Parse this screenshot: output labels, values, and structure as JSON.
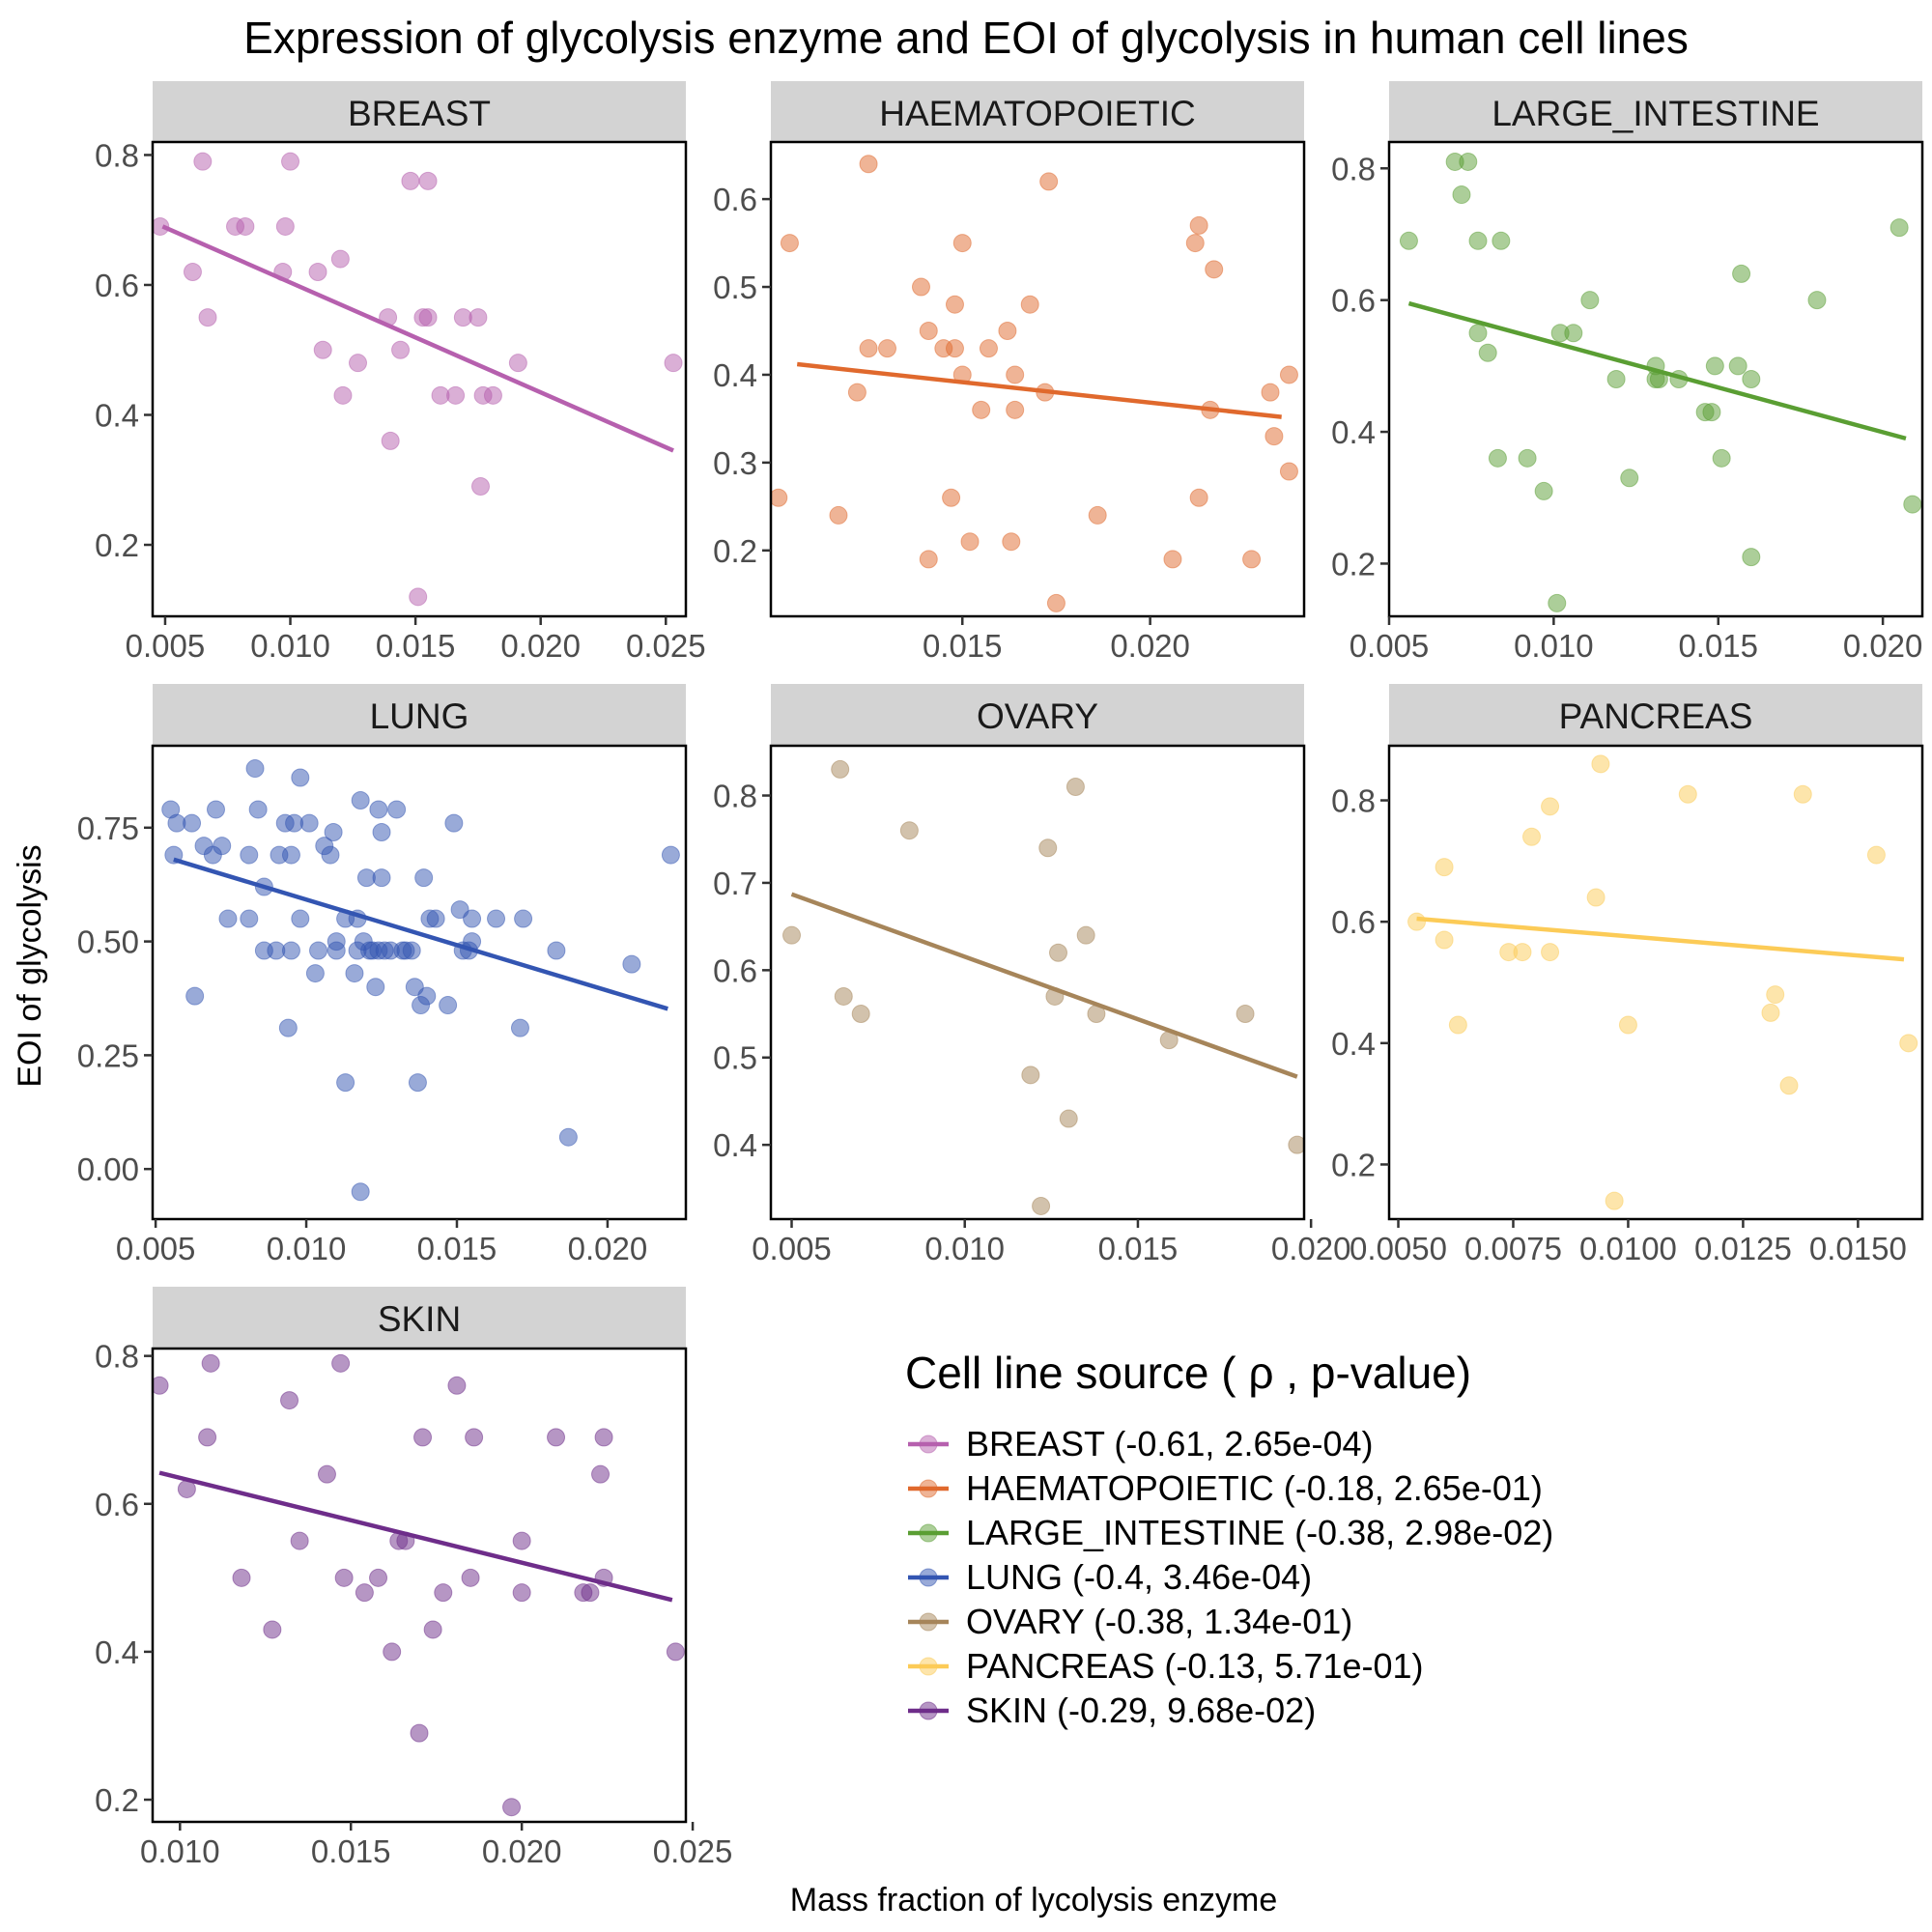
{
  "title": "Expression of glycolysis enzyme and EOI of glycolysis in human cell lines",
  "xlabel": "Mass fraction of lycolysis enzyme",
  "ylabel": "EOI of glycolysis",
  "legend": {
    "title": "Cell line source ( ρ , p-value)",
    "placement": "bottom-right",
    "entries": [
      {
        "label": "BREAST (-0.61, 2.65e-04)",
        "color": "#B660AE"
      },
      {
        "label": "HAEMATOPOIETIC (-0.18, 2.65e-01)",
        "color": "#E0692D"
      },
      {
        "label": "LARGE_INTESTINE (-0.38, 2.98e-02)",
        "color": "#5A9E33"
      },
      {
        "label": "LUNG (-0.4, 3.46e-04)",
        "color": "#3355B2"
      },
      {
        "label": "OVARY (-0.38, 1.34e-01)",
        "color": "#A6855A"
      },
      {
        "label": "PANCREAS (-0.13, 5.71e-01)",
        "color": "#FCCB57"
      },
      {
        "label": "SKIN (-0.29, 9.68e-02)",
        "color": "#6E2D8A"
      }
    ]
  },
  "chart_data": [
    {
      "type": "scatter",
      "title": "BREAST",
      "color": "#B660AE",
      "xlim": [
        0.0045,
        0.0258
      ],
      "ylim": [
        0.09,
        0.82
      ],
      "xticks": [
        "0.005",
        "0.010",
        "0.015",
        "0.020",
        "0.025"
      ],
      "yticks": [
        "0.2",
        "0.4",
        "0.6",
        "0.8"
      ],
      "points": [
        [
          0.0048,
          0.69
        ],
        [
          0.0061,
          0.62
        ],
        [
          0.0065,
          0.79
        ],
        [
          0.0067,
          0.55
        ],
        [
          0.0078,
          0.69
        ],
        [
          0.0082,
          0.69
        ],
        [
          0.0097,
          0.62
        ],
        [
          0.0098,
          0.69
        ],
        [
          0.01,
          0.79
        ],
        [
          0.0111,
          0.62
        ],
        [
          0.0113,
          0.5
        ],
        [
          0.012,
          0.64
        ],
        [
          0.0121,
          0.43
        ],
        [
          0.0127,
          0.48
        ],
        [
          0.0139,
          0.55
        ],
        [
          0.014,
          0.36
        ],
        [
          0.0144,
          0.5
        ],
        [
          0.0148,
          0.76
        ],
        [
          0.0151,
          0.12
        ],
        [
          0.0153,
          0.55
        ],
        [
          0.0155,
          0.55
        ],
        [
          0.0155,
          0.76
        ],
        [
          0.016,
          0.43
        ],
        [
          0.0166,
          0.43
        ],
        [
          0.0169,
          0.55
        ],
        [
          0.0175,
          0.55
        ],
        [
          0.0176,
          0.29
        ],
        [
          0.0177,
          0.43
        ],
        [
          0.0181,
          0.43
        ],
        [
          0.0191,
          0.48
        ],
        [
          0.0253,
          0.48
        ]
      ],
      "fit": [
        [
          0.0049,
          0.69
        ],
        [
          0.0253,
          0.345
        ]
      ]
    },
    {
      "type": "scatter",
      "title": "HAEMATOPOIETIC",
      "color": "#E0692D",
      "xlim": [
        0.0099,
        0.0241
      ],
      "ylim": [
        0.125,
        0.665
      ],
      "xticks": [
        "0.015",
        "0.020"
      ],
      "yticks": [
        "0.2",
        "0.3",
        "0.4",
        "0.5",
        "0.6"
      ],
      "points": [
        [
          0.0101,
          0.26
        ],
        [
          0.0104,
          0.55
        ],
        [
          0.0117,
          0.24
        ],
        [
          0.0122,
          0.38
        ],
        [
          0.0125,
          0.43
        ],
        [
          0.0125,
          0.64
        ],
        [
          0.013,
          0.43
        ],
        [
          0.0139,
          0.5
        ],
        [
          0.0141,
          0.19
        ],
        [
          0.0141,
          0.45
        ],
        [
          0.0145,
          0.43
        ],
        [
          0.0147,
          0.26
        ],
        [
          0.0148,
          0.43
        ],
        [
          0.0148,
          0.48
        ],
        [
          0.015,
          0.55
        ],
        [
          0.015,
          0.4
        ],
        [
          0.0152,
          0.21
        ],
        [
          0.0155,
          0.36
        ],
        [
          0.0157,
          0.43
        ],
        [
          0.0162,
          0.45
        ],
        [
          0.0163,
          0.21
        ],
        [
          0.0164,
          0.4
        ],
        [
          0.0164,
          0.36
        ],
        [
          0.0168,
          0.48
        ],
        [
          0.0172,
          0.38
        ],
        [
          0.0173,
          0.62
        ],
        [
          0.0175,
          0.14
        ],
        [
          0.0186,
          0.24
        ],
        [
          0.0206,
          0.19
        ],
        [
          0.0212,
          0.55
        ],
        [
          0.0213,
          0.57
        ],
        [
          0.0213,
          0.26
        ],
        [
          0.0216,
          0.36
        ],
        [
          0.0217,
          0.52
        ],
        [
          0.0227,
          0.19
        ],
        [
          0.0232,
          0.38
        ],
        [
          0.0233,
          0.33
        ],
        [
          0.0237,
          0.29
        ],
        [
          0.0237,
          0.4
        ]
      ],
      "fit": [
        [
          0.0106,
          0.412
        ],
        [
          0.0235,
          0.352
        ]
      ]
    },
    {
      "type": "scatter",
      "title": "LARGE_INTESTINE",
      "color": "#5A9E33",
      "xlim": [
        0.005,
        0.0212
      ],
      "ylim": [
        0.12,
        0.84
      ],
      "xticks": [
        "0.005",
        "0.010",
        "0.015",
        "0.020"
      ],
      "yticks": [
        "0.2",
        "0.4",
        "0.6",
        "0.8"
      ],
      "points": [
        [
          0.0056,
          0.69
        ],
        [
          0.007,
          0.81
        ],
        [
          0.0072,
          0.76
        ],
        [
          0.0074,
          0.81
        ],
        [
          0.0077,
          0.69
        ],
        [
          0.0077,
          0.55
        ],
        [
          0.008,
          0.52
        ],
        [
          0.0083,
          0.36
        ],
        [
          0.0084,
          0.69
        ],
        [
          0.0092,
          0.36
        ],
        [
          0.0097,
          0.31
        ],
        [
          0.0101,
          0.14
        ],
        [
          0.0102,
          0.55
        ],
        [
          0.0106,
          0.55
        ],
        [
          0.0111,
          0.6
        ],
        [
          0.0119,
          0.48
        ],
        [
          0.0123,
          0.33
        ],
        [
          0.0131,
          0.48
        ],
        [
          0.0131,
          0.5
        ],
        [
          0.0132,
          0.48
        ],
        [
          0.0138,
          0.48
        ],
        [
          0.0146,
          0.43
        ],
        [
          0.0148,
          0.43
        ],
        [
          0.0149,
          0.5
        ],
        [
          0.0151,
          0.36
        ],
        [
          0.0156,
          0.5
        ],
        [
          0.0157,
          0.64
        ],
        [
          0.016,
          0.48
        ],
        [
          0.016,
          0.21
        ],
        [
          0.018,
          0.6
        ],
        [
          0.0205,
          0.71
        ],
        [
          0.0209,
          0.29
        ]
      ],
      "fit": [
        [
          0.0056,
          0.595
        ],
        [
          0.0207,
          0.39
        ]
      ]
    },
    {
      "type": "scatter",
      "title": "LUNG",
      "color": "#3355B2",
      "xlim": [
        0.0049,
        0.0226
      ],
      "ylim": [
        -0.11,
        0.93
      ],
      "xticks": [
        "0.005",
        "0.010",
        "0.015",
        "0.020"
      ],
      "yticks": [
        "0.00",
        "0.25",
        "0.50",
        "0.75"
      ],
      "points": [
        [
          0.0055,
          0.79
        ],
        [
          0.0056,
          0.69
        ],
        [
          0.0057,
          0.76
        ],
        [
          0.0062,
          0.76
        ],
        [
          0.0063,
          0.38
        ],
        [
          0.0066,
          0.71
        ],
        [
          0.0069,
          0.69
        ],
        [
          0.007,
          0.79
        ],
        [
          0.0072,
          0.71
        ],
        [
          0.0074,
          0.55
        ],
        [
          0.0081,
          0.55
        ],
        [
          0.0081,
          0.69
        ],
        [
          0.0083,
          0.88
        ],
        [
          0.0084,
          0.79
        ],
        [
          0.0086,
          0.62
        ],
        [
          0.0086,
          0.48
        ],
        [
          0.009,
          0.48
        ],
        [
          0.0091,
          0.69
        ],
        [
          0.0093,
          0.76
        ],
        [
          0.0094,
          0.31
        ],
        [
          0.0095,
          0.69
        ],
        [
          0.0095,
          0.48
        ],
        [
          0.0096,
          0.76
        ],
        [
          0.0098,
          0.55
        ],
        [
          0.0098,
          0.86
        ],
        [
          0.0101,
          0.76
        ],
        [
          0.0103,
          0.43
        ],
        [
          0.0104,
          0.48
        ],
        [
          0.0106,
          0.71
        ],
        [
          0.0108,
          0.69
        ],
        [
          0.0109,
          0.74
        ],
        [
          0.011,
          0.48
        ],
        [
          0.011,
          0.5
        ],
        [
          0.0113,
          0.19
        ],
        [
          0.0113,
          0.55
        ],
        [
          0.0116,
          0.43
        ],
        [
          0.0117,
          0.48
        ],
        [
          0.0117,
          0.55
        ],
        [
          0.0118,
          0.81
        ],
        [
          0.0118,
          -0.05
        ],
        [
          0.0119,
          0.5
        ],
        [
          0.012,
          0.64
        ],
        [
          0.0121,
          0.48
        ],
        [
          0.0122,
          0.48
        ],
        [
          0.0123,
          0.4
        ],
        [
          0.0124,
          0.79
        ],
        [
          0.0124,
          0.48
        ],
        [
          0.0125,
          0.64
        ],
        [
          0.0125,
          0.74
        ],
        [
          0.0126,
          0.48
        ],
        [
          0.0128,
          0.48
        ],
        [
          0.013,
          0.79
        ],
        [
          0.0132,
          0.48
        ],
        [
          0.0133,
          0.48
        ],
        [
          0.0135,
          0.48
        ],
        [
          0.0136,
          0.4
        ],
        [
          0.0137,
          0.19
        ],
        [
          0.0138,
          0.36
        ],
        [
          0.0139,
          0.64
        ],
        [
          0.014,
          0.38
        ],
        [
          0.0141,
          0.55
        ],
        [
          0.0143,
          0.55
        ],
        [
          0.0147,
          0.36
        ],
        [
          0.0149,
          0.76
        ],
        [
          0.0151,
          0.57
        ],
        [
          0.0152,
          0.48
        ],
        [
          0.0154,
          0.48
        ],
        [
          0.0155,
          0.55
        ],
        [
          0.0155,
          0.5
        ],
        [
          0.0163,
          0.55
        ],
        [
          0.0171,
          0.31
        ],
        [
          0.0172,
          0.55
        ],
        [
          0.0183,
          0.48
        ],
        [
          0.0187,
          0.07
        ],
        [
          0.0208,
          0.45
        ],
        [
          0.0221,
          0.69
        ]
      ],
      "fit": [
        [
          0.0056,
          0.68
        ],
        [
          0.022,
          0.352
        ]
      ]
    },
    {
      "type": "scatter",
      "title": "OVARY",
      "color": "#A6855A",
      "xlim": [
        0.0044,
        0.0198
      ],
      "ylim": [
        0.315,
        0.857
      ],
      "xticks": [
        "0.005",
        "0.010",
        "0.015",
        "0.020"
      ],
      "yticks": [
        "0.4",
        "0.5",
        "0.6",
        "0.7",
        "0.8"
      ],
      "points": [
        [
          0.005,
          0.64
        ],
        [
          0.0064,
          0.83
        ],
        [
          0.0065,
          0.57
        ],
        [
          0.007,
          0.55
        ],
        [
          0.0084,
          0.76
        ],
        [
          0.0119,
          0.48
        ],
        [
          0.0122,
          0.33
        ],
        [
          0.0124,
          0.74
        ],
        [
          0.0126,
          0.57
        ],
        [
          0.0127,
          0.62
        ],
        [
          0.013,
          0.43
        ],
        [
          0.0132,
          0.81
        ],
        [
          0.0135,
          0.64
        ],
        [
          0.0138,
          0.55
        ],
        [
          0.0159,
          0.52
        ],
        [
          0.0181,
          0.55
        ],
        [
          0.0196,
          0.4
        ]
      ],
      "fit": [
        [
          0.005,
          0.687
        ],
        [
          0.0196,
          0.478
        ]
      ]
    },
    {
      "type": "scatter",
      "title": "PANCREAS",
      "color": "#FCCB57",
      "xlim": [
        0.0048,
        0.0164
      ],
      "ylim": [
        0.11,
        0.89
      ],
      "xticks": [
        "0.0050",
        "0.0075",
        "0.0100",
        "0.0125",
        "0.0150"
      ],
      "yticks": [
        "0.2",
        "0.4",
        "0.6",
        "0.8"
      ],
      "points": [
        [
          0.0054,
          0.6
        ],
        [
          0.006,
          0.57
        ],
        [
          0.006,
          0.69
        ],
        [
          0.0063,
          0.43
        ],
        [
          0.0074,
          0.55
        ],
        [
          0.0077,
          0.55
        ],
        [
          0.0079,
          0.74
        ],
        [
          0.0083,
          0.79
        ],
        [
          0.0083,
          0.55
        ],
        [
          0.0093,
          0.64
        ],
        [
          0.0094,
          0.86
        ],
        [
          0.0097,
          0.14
        ],
        [
          0.01,
          0.43
        ],
        [
          0.0113,
          0.81
        ],
        [
          0.0131,
          0.45
        ],
        [
          0.0132,
          0.48
        ],
        [
          0.0135,
          0.33
        ],
        [
          0.0138,
          0.81
        ],
        [
          0.0154,
          0.71
        ],
        [
          0.0161,
          0.4
        ]
      ],
      "fit": [
        [
          0.0054,
          0.605
        ],
        [
          0.016,
          0.538
        ]
      ]
    },
    {
      "type": "scatter",
      "title": "SKIN",
      "color": "#6E2D8A",
      "xlim": [
        0.0092,
        0.0248
      ],
      "ylim": [
        0.17,
        0.81
      ],
      "xticks": [
        "0.010",
        "0.015",
        "0.020",
        "0.025"
      ],
      "yticks": [
        "0.2",
        "0.4",
        "0.6",
        "0.8"
      ],
      "points": [
        [
          0.0094,
          0.76
        ],
        [
          0.0102,
          0.62
        ],
        [
          0.0108,
          0.69
        ],
        [
          0.0109,
          0.79
        ],
        [
          0.0118,
          0.5
        ],
        [
          0.0127,
          0.43
        ],
        [
          0.0132,
          0.74
        ],
        [
          0.0135,
          0.55
        ],
        [
          0.0143,
          0.64
        ],
        [
          0.0147,
          0.79
        ],
        [
          0.0148,
          0.5
        ],
        [
          0.0154,
          0.48
        ],
        [
          0.0158,
          0.5
        ],
        [
          0.0162,
          0.4
        ],
        [
          0.0164,
          0.55
        ],
        [
          0.0166,
          0.55
        ],
        [
          0.017,
          0.29
        ],
        [
          0.0171,
          0.69
        ],
        [
          0.0174,
          0.43
        ],
        [
          0.0177,
          0.48
        ],
        [
          0.0181,
          0.76
        ],
        [
          0.0185,
          0.5
        ],
        [
          0.0186,
          0.69
        ],
        [
          0.0197,
          0.19
        ],
        [
          0.02,
          0.48
        ],
        [
          0.02,
          0.55
        ],
        [
          0.021,
          0.69
        ],
        [
          0.0218,
          0.48
        ],
        [
          0.022,
          0.48
        ],
        [
          0.0223,
          0.64
        ],
        [
          0.0224,
          0.69
        ],
        [
          0.0224,
          0.5
        ],
        [
          0.0245,
          0.4
        ]
      ],
      "fit": [
        [
          0.0094,
          0.642
        ],
        [
          0.0244,
          0.47
        ]
      ]
    }
  ]
}
